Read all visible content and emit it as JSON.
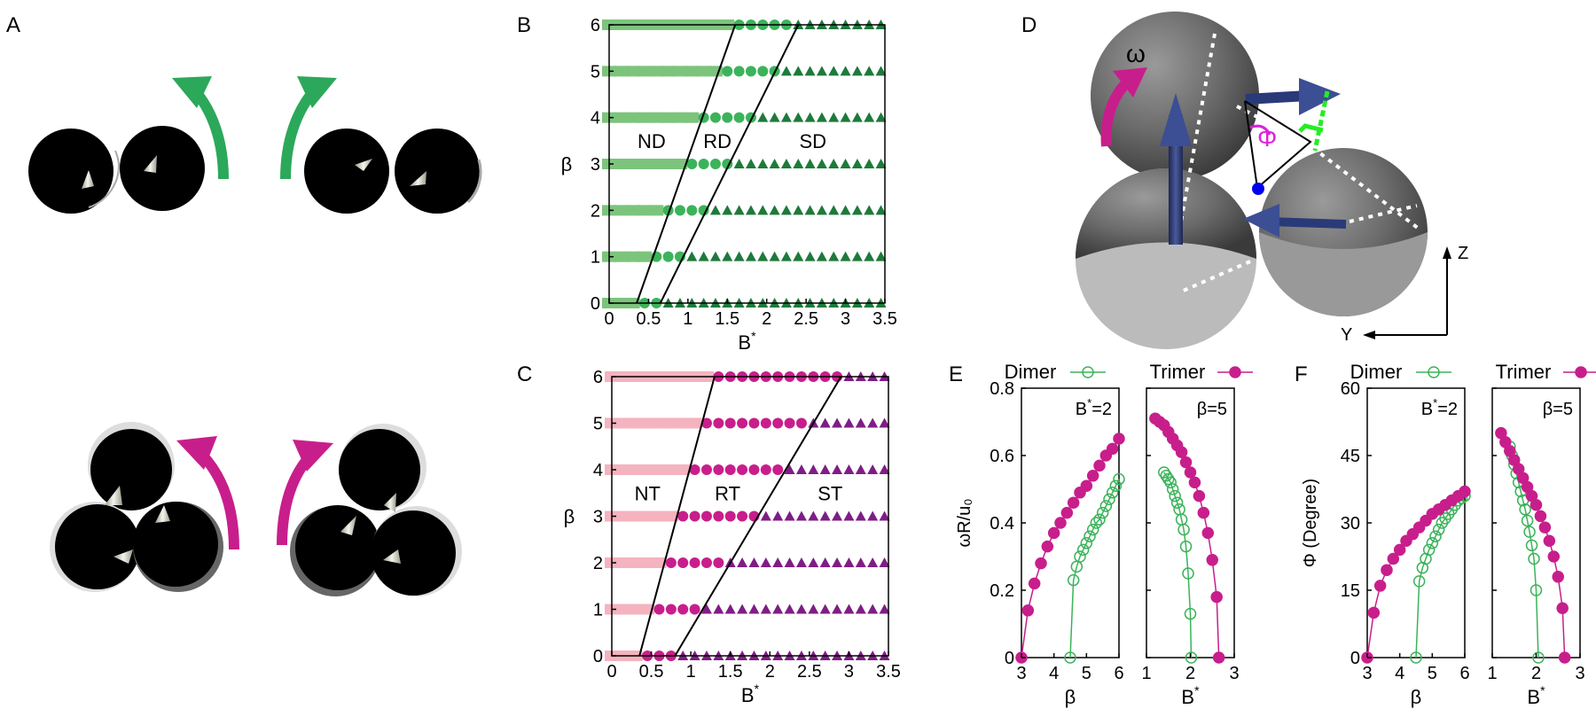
{
  "panel_labels": {
    "A": "A",
    "B": "B",
    "C": "C",
    "D": "D",
    "E": "E",
    "F": "F"
  },
  "colors": {
    "dimer_light": "#7cc47c",
    "dimer_mid": "#3bb35a",
    "dimer_dark": "#1d7a3b",
    "trimer_light": "#f4b3bf",
    "trimer_mid": "#c81e8c",
    "trimer_dark": "#7f1d86",
    "arrow_green": "#2ca85a",
    "arrow_magenta": "#c81e8c",
    "sphere_dark": "#555555",
    "director": "#2a3a78",
    "dotted": "#ffffff",
    "bright_green": "#22ee22"
  },
  "panel_D": {
    "omega": "ω",
    "phi": "Φ",
    "axis_z": "Z",
    "axis_y": "Y"
  },
  "chart_data": [
    {
      "id": "B",
      "type": "scatter",
      "xlabel": "B*",
      "ylabel": "β",
      "xlim": [
        0,
        3.5
      ],
      "ylim": [
        0,
        6
      ],
      "xticks": [
        "0",
        "0.5",
        "1",
        "1.5",
        "2",
        "2.5",
        "3",
        "3.5"
      ],
      "yticks": [
        "0",
        "1",
        "2",
        "3",
        "4",
        "5",
        "6"
      ],
      "region_labels": [
        "ND",
        "RD",
        "SD"
      ],
      "region_label_y": 3.5,
      "boundaries": [
        [
          [
            0.35,
            0
          ],
          [
            1.6,
            6
          ]
        ],
        [
          [
            0.65,
            0
          ],
          [
            2.4,
            6
          ]
        ]
      ],
      "x_grid": [
        0,
        0.15,
        0.3,
        0.45,
        0.6,
        0.75,
        0.9,
        1.05,
        1.2,
        1.35,
        1.5,
        1.65,
        1.8,
        1.95,
        2.1,
        2.25,
        2.4,
        2.55,
        2.7,
        2.85,
        3.0,
        3.15,
        3.3,
        3.45
      ],
      "beta_rows": [
        0,
        1,
        2,
        3,
        4,
        5,
        6
      ]
    },
    {
      "id": "C",
      "type": "scatter",
      "xlabel": "B*",
      "ylabel": "β",
      "xlim": [
        0,
        3.5
      ],
      "ylim": [
        0,
        6
      ],
      "xticks": [
        "0",
        "0.5",
        "1",
        "1.5",
        "2",
        "2.5",
        "3",
        "3.5"
      ],
      "yticks": [
        "0",
        "1",
        "2",
        "3",
        "4",
        "5",
        "6"
      ],
      "region_labels": [
        "NT",
        "RT",
        "ST"
      ],
      "region_label_y": 3.5,
      "boundaries": [
        [
          [
            0.35,
            0
          ],
          [
            1.3,
            6
          ]
        ],
        [
          [
            0.8,
            0
          ],
          [
            2.9,
            6
          ]
        ]
      ],
      "x_grid": [
        0,
        0.15,
        0.3,
        0.45,
        0.6,
        0.75,
        0.9,
        1.05,
        1.2,
        1.35,
        1.5,
        1.65,
        1.8,
        1.95,
        2.1,
        2.25,
        2.4,
        2.55,
        2.7,
        2.85,
        3.0,
        3.15,
        3.3,
        3.45
      ],
      "beta_rows": [
        0,
        1,
        2,
        3,
        4,
        5,
        6
      ]
    },
    {
      "id": "E",
      "type": "line",
      "ylabel": "ωR/u₀",
      "ylim": [
        0,
        0.8
      ],
      "yticks": [
        "0",
        "0.2",
        "0.4",
        "0.6",
        "0.8"
      ],
      "legend": [
        "Dimer",
        "Trimer"
      ],
      "left": {
        "annotation": "B*=2",
        "xlabel": "β",
        "xlim": [
          3,
          6
        ],
        "xticks": [
          "3",
          "4",
          "5",
          "6"
        ],
        "series": [
          {
            "name": "Dimer",
            "x": [
              4.5,
              4.6,
              4.7,
              4.8,
              4.9,
              5.0,
              5.1,
              5.2,
              5.3,
              5.4,
              5.5,
              5.6,
              5.7,
              5.8,
              5.9,
              6.0
            ],
            "y": [
              0,
              0.23,
              0.27,
              0.3,
              0.32,
              0.34,
              0.36,
              0.38,
              0.4,
              0.41,
              0.43,
              0.45,
              0.47,
              0.49,
              0.51,
              0.53
            ]
          },
          {
            "name": "Trimer",
            "x": [
              3.0,
              3.2,
              3.4,
              3.6,
              3.8,
              4.0,
              4.2,
              4.4,
              4.6,
              4.8,
              5.0,
              5.2,
              5.4,
              5.6,
              5.8,
              6.0
            ],
            "y": [
              0,
              0.14,
              0.22,
              0.28,
              0.33,
              0.37,
              0.4,
              0.43,
              0.46,
              0.49,
              0.51,
              0.54,
              0.57,
              0.6,
              0.62,
              0.65
            ]
          }
        ]
      },
      "right": {
        "annotation": "β=5",
        "xlabel": "B*",
        "xlim": [
          1,
          3
        ],
        "xticks": [
          "1",
          "2",
          "3"
        ],
        "series": [
          {
            "name": "Dimer",
            "x": [
              1.4,
              1.45,
              1.5,
              1.55,
              1.6,
              1.65,
              1.7,
              1.75,
              1.8,
              1.85,
              1.9,
              1.95,
              2.0,
              2.02
            ],
            "y": [
              0.55,
              0.54,
              0.53,
              0.52,
              0.5,
              0.48,
              0.46,
              0.44,
              0.41,
              0.38,
              0.33,
              0.25,
              0.13,
              0
            ]
          },
          {
            "name": "Trimer",
            "x": [
              1.2,
              1.3,
              1.4,
              1.5,
              1.6,
              1.7,
              1.8,
              1.9,
              2.0,
              2.1,
              2.2,
              2.3,
              2.4,
              2.5,
              2.6,
              2.65
            ],
            "y": [
              0.71,
              0.7,
              0.69,
              0.67,
              0.65,
              0.63,
              0.61,
              0.58,
              0.55,
              0.52,
              0.48,
              0.43,
              0.37,
              0.29,
              0.18,
              0
            ]
          }
        ]
      }
    },
    {
      "id": "F",
      "type": "line",
      "ylabel": "Φ (Degree)",
      "ylim": [
        0,
        60
      ],
      "yticks": [
        "0",
        "15",
        "30",
        "45",
        "60"
      ],
      "legend": [
        "Dimer",
        "Trimer"
      ],
      "left": {
        "annotation": "B*=2",
        "xlabel": "β",
        "xlim": [
          3,
          6
        ],
        "xticks": [
          "3",
          "4",
          "5",
          "6"
        ],
        "series": [
          {
            "name": "Dimer",
            "x": [
              4.5,
              4.6,
              4.7,
              4.8,
              4.9,
              5.0,
              5.1,
              5.2,
              5.3,
              5.4,
              5.5,
              5.6,
              5.7,
              5.8,
              5.9,
              6.0
            ],
            "y": [
              0,
              17,
              20,
              22,
              24,
              25.5,
              27,
              28.5,
              30,
              31,
              32,
              33,
              34,
              35,
              35.5,
              36
            ]
          },
          {
            "name": "Trimer",
            "x": [
              3.0,
              3.2,
              3.4,
              3.6,
              3.8,
              4.0,
              4.2,
              4.4,
              4.6,
              4.8,
              5.0,
              5.2,
              5.4,
              5.6,
              5.8,
              6.0
            ],
            "y": [
              0,
              10,
              16,
              19.5,
              22,
              24,
              26,
              27.5,
              29,
              30.5,
              32,
              33,
              34,
              35,
              36,
              37
            ]
          }
        ]
      },
      "right": {
        "annotation": "β=5",
        "xlabel": "B*",
        "xlim": [
          1,
          3
        ],
        "xticks": [
          "1",
          "2",
          "3"
        ],
        "series": [
          {
            "name": "Dimer",
            "x": [
              1.4,
              1.45,
              1.5,
              1.55,
              1.6,
              1.65,
              1.7,
              1.75,
              1.8,
              1.85,
              1.9,
              1.95,
              2.0,
              2.05
            ],
            "y": [
              47,
              45,
              43,
              41,
              39,
              37,
              35,
              33,
              30.5,
              28,
              25,
              22,
              15,
              0
            ]
          },
          {
            "name": "Trimer",
            "x": [
              1.2,
              1.3,
              1.4,
              1.5,
              1.6,
              1.7,
              1.8,
              1.9,
              2.0,
              2.1,
              2.2,
              2.3,
              2.4,
              2.5,
              2.6,
              2.65
            ],
            "y": [
              50,
              48,
              46,
              44,
              42,
              40,
              38,
              36,
              34,
              31.5,
              29,
              26,
              22.5,
              18,
              11,
              0
            ]
          }
        ]
      }
    }
  ]
}
